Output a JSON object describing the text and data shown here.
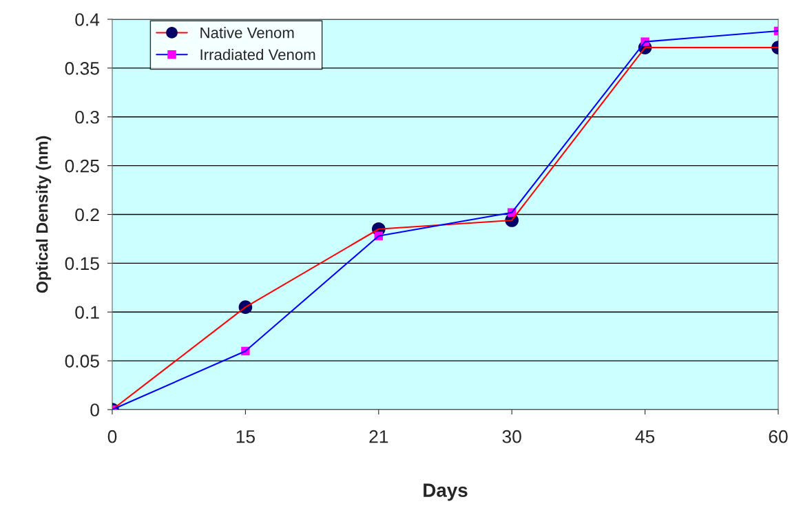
{
  "chart_data": {
    "type": "line",
    "xlabel": "Days",
    "ylabel": "Optical Density (nm)",
    "categories": [
      "0",
      "15",
      "21",
      "30",
      "45",
      "60"
    ],
    "series": [
      {
        "name": "Native Venom",
        "color": "#ff0000",
        "colors": [
          "#000066",
          "#000066",
          "#000066",
          "#000066",
          "#000066",
          "#000066"
        ],
        "marker": "circle",
        "values": [
          0,
          0.105,
          0.185,
          0.194,
          0.371,
          0.371
        ]
      },
      {
        "name": "Irradiated Venom",
        "color": "#0000ff",
        "colors": [
          "#ff00ff",
          "#ff00ff",
          "#ff00ff",
          "#ff00ff",
          "#ff00ff",
          "#ff00ff"
        ],
        "marker": "square",
        "values": [
          0,
          0.06,
          0.178,
          0.202,
          0.377,
          0.388
        ]
      }
    ],
    "ylim": [
      0,
      0.4
    ],
    "yticks": [
      0,
      0.05,
      0.1,
      0.15,
      0.2,
      0.25,
      0.3,
      0.35,
      0.4
    ],
    "grid": "y",
    "legend": "top left"
  }
}
